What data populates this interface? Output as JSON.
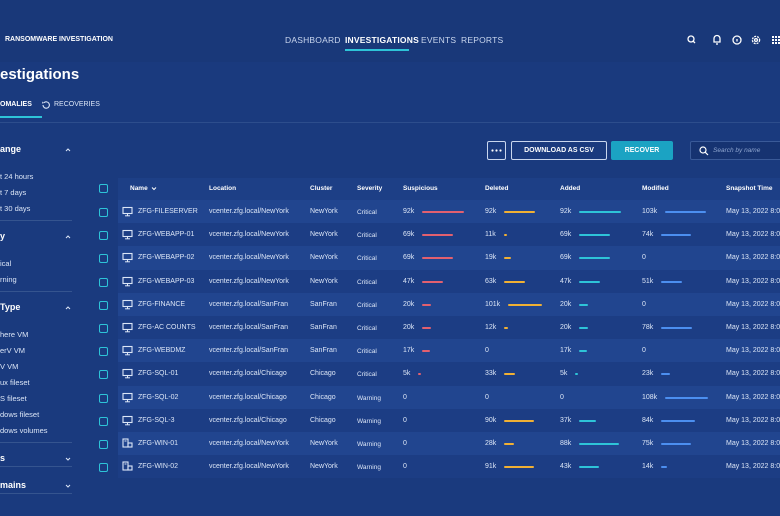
{
  "header": {
    "app_title": "RANSOMWARE INVESTIGATION",
    "nav": [
      "DASHBOARD",
      "INVESTIGATIONS",
      "EVENTS",
      "REPORTS"
    ]
  },
  "page": {
    "title": "estigations",
    "tabs": [
      "OMALIES",
      "RECOVERIES"
    ]
  },
  "sidebar": {
    "groups": [
      {
        "title": "ange",
        "open": true,
        "items": [
          "t 24 hours",
          "t 7 days",
          "t 30 days"
        ]
      },
      {
        "title": "y",
        "open": true,
        "items": [
          "ical",
          "rning"
        ]
      },
      {
        "title": "Type",
        "open": true,
        "items": [
          "here VM",
          "erV VM",
          "V VM",
          "ux fileset",
          "S fileset",
          "dows fileset",
          "dows volumes"
        ]
      },
      {
        "title": "s",
        "open": false
      },
      {
        "title": "mains",
        "open": false
      }
    ]
  },
  "toolbar": {
    "download": "DOWNLOAD AS CSV",
    "recover": "RECOVER",
    "search_placeholder": "Search by name"
  },
  "table": {
    "columns": [
      "Name",
      "Location",
      "Cluster",
      "Severity",
      "Suspicious",
      "Deleted",
      "Added",
      "Modified",
      "Snapshot Time"
    ],
    "icons": [
      "vm",
      "vm",
      "vm",
      "vm",
      "vm",
      "vm",
      "vm",
      "vm",
      "vm",
      "vm",
      "host",
      "host"
    ],
    "rows": [
      [
        "ZFG-FILESERVER",
        "vcenter.zfg.local/NewYork",
        "NewYork",
        "Critical",
        "92k",
        "92k",
        "92k",
        "103k",
        "May 13, 2022 8:0"
      ],
      [
        "ZFG-WEBAPP-01",
        "vcenter.zfg.local/NewYork",
        "NewYork",
        "Critical",
        "69k",
        "11k",
        "69k",
        "74k",
        "May 13, 2022 8:0"
      ],
      [
        "ZFG-WEBAPP-02",
        "vcenter.zfg.local/NewYork",
        "NewYork",
        "Critical",
        "69k",
        "19k",
        "69k",
        "0",
        "May 13, 2022 8:0"
      ],
      [
        "ZFG-WEBAPP-03",
        "vcenter.zfg.local/NewYork",
        "NewYork",
        "Critical",
        "47k",
        "63k",
        "47k",
        "51k",
        "May 13, 2022 8:0"
      ],
      [
        "ZFG-FINANCE",
        "vcenter.zfg.local/SanFran",
        "SanFran",
        "Critical",
        "20k",
        "101k",
        "20k",
        "0",
        "May 13, 2022 8:0"
      ],
      [
        "ZFG-AC COUNTS",
        "vcenter.zfg.local/SanFran",
        "SanFran",
        "Critical",
        "20k",
        "12k",
        "20k",
        "78k",
        "May 13, 2022 8:0"
      ],
      [
        "ZFG-WEBDMZ",
        "vcenter.zfg.local/SanFran",
        "SanFran",
        "Critical",
        "17k",
        "0",
        "17k",
        "0",
        "May 13, 2022 8:0"
      ],
      [
        "ZFG-SQL-01",
        "vcenter.zfg.local/Chicago",
        "Chicago",
        "Critical",
        "5k",
        "33k",
        "5k",
        "23k",
        "May 13, 2022 8:0"
      ],
      [
        "ZFG-SQL-02",
        "vcenter.zfg.local/Chicago",
        "Chicago",
        "Warning",
        "0",
        "0",
        "0",
        "108k",
        "May 13, 2022 8:0"
      ],
      [
        "ZFG-SQL-3",
        "vcenter.zfg.local/Chicago",
        "Chicago",
        "Warning",
        "0",
        "90k",
        "37k",
        "84k",
        "May 13, 2022 8:0"
      ],
      [
        "ZFG-WIN-01",
        "vcenter.zfg.local/NewYork",
        "NewYork",
        "Warning",
        "0",
        "28k",
        "88k",
        "75k",
        "May 13, 2022 8:0"
      ],
      [
        "ZFG-WIN-02",
        "vcenter.zfg.local/NewYork",
        "NewYork",
        "Warning",
        "0",
        "91k",
        "43k",
        "14k",
        "May 13, 2022 8:0"
      ]
    ]
  }
}
